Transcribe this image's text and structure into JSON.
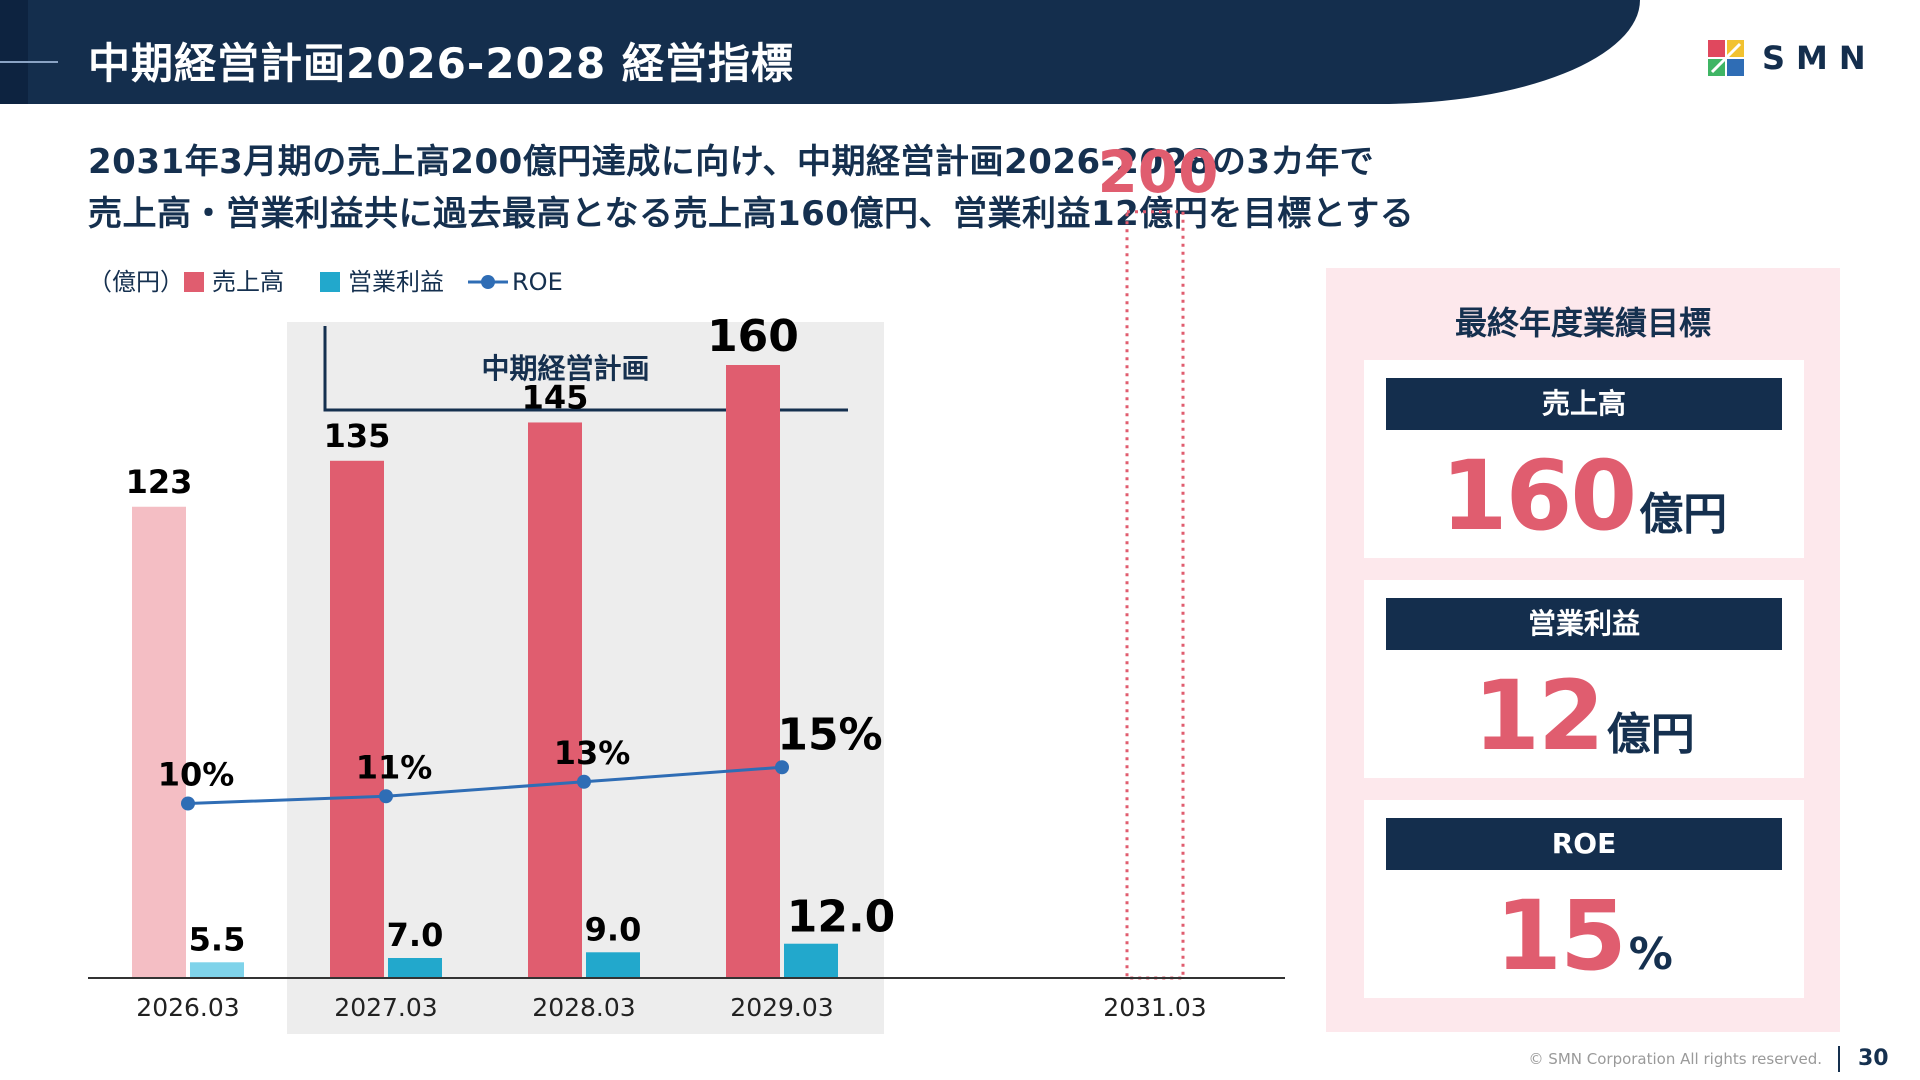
{
  "header": {
    "title": "中期経営計画2026-2028 経営指標",
    "logo_text": "SMN"
  },
  "lead": {
    "line1": "2031年3月期の売上高200億円達成に向け、中期経営計画2026-2028の3カ年で",
    "line2": "売上高・営業利益共に過去最高となる売上高160億円、営業利益12億円を目標とする"
  },
  "chart_data": {
    "type": "bar",
    "unit_label": "（億円）",
    "categories": [
      "2026.03",
      "2027.03",
      "2028.03",
      "2029.03",
      "2031.03"
    ],
    "series": [
      {
        "name": "売上高",
        "type": "bar",
        "values": [
          123,
          135,
          145,
          160,
          200
        ],
        "labels": [
          "123",
          "135",
          "145",
          "160",
          "200"
        ],
        "color": "#e05d6f",
        "actual_color": "#f4bec4"
      },
      {
        "name": "営業利益",
        "type": "bar",
        "values": [
          5.5,
          7.0,
          9.0,
          12.0,
          null
        ],
        "labels": [
          "5.5",
          "7.0",
          "9.0",
          "12.0",
          ""
        ],
        "color": "#22a8cc",
        "actual_color": "#7fd3ea"
      },
      {
        "name": "ROE",
        "type": "line",
        "values": [
          10,
          11,
          13,
          15,
          null
        ],
        "labels": [
          "10%",
          "11%",
          "13%",
          "15%",
          ""
        ],
        "color": "#2f6db5"
      }
    ],
    "plan_band_label": "中期経営計画",
    "plan_band_categories": [
      "2027.03",
      "2028.03",
      "2029.03"
    ],
    "target_style": "dotted-outline",
    "legend_position": "top-left",
    "grid": false
  },
  "target_panel": {
    "title": "最終年度業績目標",
    "cards": [
      {
        "label": "売上高",
        "value": "160",
        "unit": "億円"
      },
      {
        "label": "営業利益",
        "value": "12",
        "unit": "億円"
      },
      {
        "label": "ROE",
        "value": "15",
        "unit": "%"
      }
    ]
  },
  "footer": {
    "copyright": "© SMN Corporation All rights reserved.",
    "page_number": "30"
  }
}
